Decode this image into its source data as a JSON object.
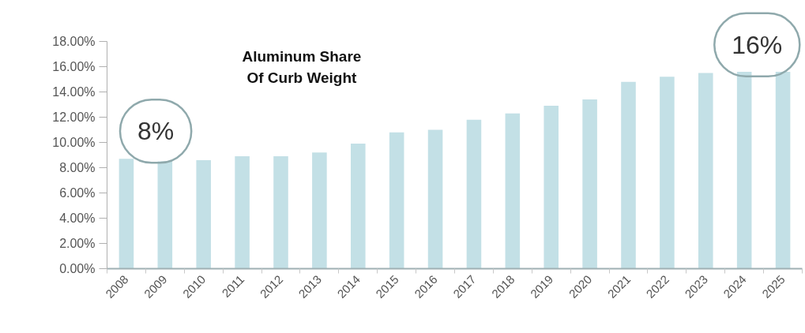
{
  "chart_data": {
    "type": "bar",
    "title": "Aluminum Share\nOf Curb Weight",
    "categories": [
      "2008",
      "2009",
      "2010",
      "2011",
      "2012",
      "2013",
      "2014",
      "2015",
      "2016",
      "2017",
      "2018",
      "2019",
      "2020",
      "2021",
      "2022",
      "2023",
      "2024",
      "2025"
    ],
    "values": [
      8.7,
      8.5,
      8.6,
      8.9,
      8.9,
      9.2,
      9.9,
      10.8,
      11.0,
      11.8,
      12.3,
      12.9,
      13.4,
      14.8,
      15.2,
      15.5,
      15.6,
      15.6
    ],
    "color": "#c3e0e6",
    "ylim": [
      0,
      18
    ],
    "yticks": [
      {
        "value": 0,
        "label": "0.00%"
      },
      {
        "value": 2,
        "label": "2.00%"
      },
      {
        "value": 4,
        "label": "4.00%"
      },
      {
        "value": 6,
        "label": "6.00%"
      },
      {
        "value": 8,
        "label": "8.00%"
      },
      {
        "value": 10,
        "label": "10.00%"
      },
      {
        "value": 12,
        "label": "12.00%"
      },
      {
        "value": 14,
        "label": "14.00%"
      },
      {
        "value": 16,
        "label": "16.00%"
      },
      {
        "value": 18,
        "label": "18.00%"
      }
    ],
    "annotations": [
      "8%",
      "16%"
    ]
  }
}
